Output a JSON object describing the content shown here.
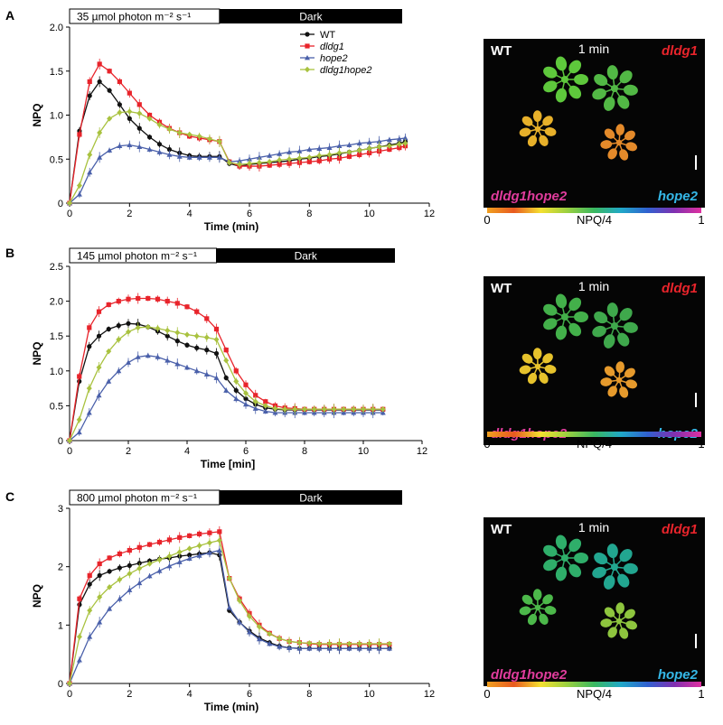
{
  "chart_data": [
    {
      "type": "line",
      "panel": "A",
      "light_label": "35 µmol photon m⁻² s⁻¹",
      "dark_label": "Dark",
      "xlabel": "Time (min)",
      "ylabel": "NPQ",
      "xlim": [
        0,
        12
      ],
      "ylim": [
        0,
        2.0
      ],
      "xticks": [
        "0",
        "2",
        "4",
        "6",
        "8",
        "10",
        "12"
      ],
      "yticks": [
        "0",
        "0.5",
        "1.0",
        "1.5",
        "2.0"
      ],
      "legend": "top-center",
      "x": [
        0,
        0.33,
        0.67,
        1.0,
        1.33,
        1.67,
        2.0,
        2.33,
        2.67,
        3.0,
        3.33,
        3.67,
        4.0,
        4.33,
        4.67,
        5.0,
        5.33,
        5.67,
        6.0,
        6.33,
        6.67,
        7.0,
        7.33,
        7.67,
        8.0,
        8.33,
        8.67,
        9.0,
        9.33,
        9.67,
        10.0,
        10.33,
        10.67,
        11.0,
        11.2
      ],
      "series": [
        {
          "name": "WT",
          "color": "#111111",
          "marker": "circle",
          "values": [
            0,
            0.82,
            1.22,
            1.38,
            1.28,
            1.12,
            0.96,
            0.85,
            0.75,
            0.67,
            0.61,
            0.57,
            0.54,
            0.53,
            0.53,
            0.53,
            0.45,
            0.42,
            0.44,
            0.45,
            0.46,
            0.47,
            0.48,
            0.5,
            0.51,
            0.53,
            0.54,
            0.56,
            0.58,
            0.6,
            0.62,
            0.64,
            0.66,
            0.68,
            0.7
          ]
        },
        {
          "name": "dldg1",
          "color": "#e8242b",
          "marker": "square",
          "values": [
            0,
            0.78,
            1.38,
            1.58,
            1.5,
            1.38,
            1.25,
            1.12,
            1.0,
            0.92,
            0.85,
            0.8,
            0.76,
            0.74,
            0.72,
            0.7,
            0.47,
            0.42,
            0.42,
            0.42,
            0.43,
            0.44,
            0.45,
            0.46,
            0.47,
            0.48,
            0.5,
            0.51,
            0.53,
            0.55,
            0.57,
            0.59,
            0.61,
            0.63,
            0.65
          ]
        },
        {
          "name": "hope2",
          "color": "#4a60aa",
          "marker": "triangle",
          "values": [
            0,
            0.1,
            0.35,
            0.52,
            0.6,
            0.65,
            0.66,
            0.64,
            0.61,
            0.58,
            0.55,
            0.53,
            0.52,
            0.52,
            0.52,
            0.52,
            0.47,
            0.48,
            0.5,
            0.52,
            0.54,
            0.56,
            0.58,
            0.59,
            0.61,
            0.62,
            0.63,
            0.65,
            0.66,
            0.68,
            0.69,
            0.7,
            0.72,
            0.73,
            0.74
          ]
        },
        {
          "name": "dldg1hope2",
          "color": "#a9c23f",
          "marker": "diamond",
          "values": [
            0,
            0.2,
            0.55,
            0.8,
            0.96,
            1.03,
            1.04,
            1.02,
            0.96,
            0.89,
            0.84,
            0.8,
            0.78,
            0.76,
            0.73,
            0.7,
            0.46,
            0.44,
            0.45,
            0.46,
            0.47,
            0.49,
            0.5,
            0.51,
            0.52,
            0.54,
            0.55,
            0.57,
            0.58,
            0.6,
            0.62,
            0.64,
            0.65,
            0.67,
            0.68
          ]
        }
      ]
    },
    {
      "type": "line",
      "panel": "B",
      "light_label": "145 µmol photon m⁻² s⁻¹",
      "dark_label": "Dark",
      "xlabel": "Time [min]",
      "ylabel": "NPQ",
      "xlim": [
        0,
        12
      ],
      "ylim": [
        0,
        2.5
      ],
      "xticks": [
        "0",
        "2",
        "4",
        "6",
        "8",
        "10",
        "12"
      ],
      "yticks": [
        "0",
        "0.5",
        "1.0",
        "1.5",
        "2.0",
        "2.5"
      ],
      "x": [
        0,
        0.33,
        0.67,
        1.0,
        1.33,
        1.67,
        2.0,
        2.33,
        2.67,
        3.0,
        3.33,
        3.67,
        4.0,
        4.33,
        4.67,
        5.0,
        5.33,
        5.67,
        6.0,
        6.33,
        6.67,
        7.0,
        7.33,
        7.67,
        8.0,
        8.33,
        8.67,
        9.0,
        9.33,
        9.67,
        10.0,
        10.33,
        10.67
      ],
      "series": [
        {
          "name": "WT",
          "color": "#111111",
          "marker": "circle",
          "values": [
            0,
            0.85,
            1.35,
            1.5,
            1.6,
            1.65,
            1.68,
            1.67,
            1.63,
            1.57,
            1.5,
            1.43,
            1.37,
            1.33,
            1.3,
            1.25,
            0.9,
            0.72,
            0.6,
            0.52,
            0.47,
            0.45,
            0.44,
            0.44,
            0.44,
            0.44,
            0.44,
            0.44,
            0.44,
            0.44,
            0.44,
            0.44,
            0.44
          ]
        },
        {
          "name": "dldg1",
          "color": "#e8242b",
          "marker": "square",
          "values": [
            0,
            0.92,
            1.62,
            1.85,
            1.95,
            2.0,
            2.03,
            2.04,
            2.04,
            2.03,
            2.0,
            1.97,
            1.92,
            1.85,
            1.75,
            1.6,
            1.3,
            1.0,
            0.8,
            0.65,
            0.56,
            0.5,
            0.47,
            0.46,
            0.45,
            0.45,
            0.45,
            0.45,
            0.45,
            0.45,
            0.45,
            0.45,
            0.45
          ]
        },
        {
          "name": "hope2",
          "color": "#4a60aa",
          "marker": "triangle",
          "values": [
            0,
            0.12,
            0.4,
            0.65,
            0.85,
            1.0,
            1.12,
            1.2,
            1.22,
            1.2,
            1.15,
            1.1,
            1.05,
            1.0,
            0.95,
            0.9,
            0.72,
            0.6,
            0.52,
            0.46,
            0.42,
            0.4,
            0.4,
            0.4,
            0.4,
            0.4,
            0.4,
            0.4,
            0.4,
            0.4,
            0.4,
            0.4,
            0.4
          ]
        },
        {
          "name": "dldg1hope2",
          "color": "#a9c23f",
          "marker": "diamond",
          "values": [
            0,
            0.3,
            0.75,
            1.05,
            1.28,
            1.45,
            1.56,
            1.62,
            1.63,
            1.61,
            1.58,
            1.55,
            1.52,
            1.5,
            1.48,
            1.45,
            1.15,
            0.85,
            0.68,
            0.56,
            0.5,
            0.46,
            0.45,
            0.45,
            0.45,
            0.45,
            0.45,
            0.45,
            0.45,
            0.45,
            0.45,
            0.45,
            0.45
          ]
        }
      ]
    },
    {
      "type": "line",
      "panel": "C",
      "light_label": "800 µmol photon m⁻² s⁻¹",
      "dark_label": "Dark",
      "xlabel": "Time (min)",
      "ylabel": "NPQ",
      "xlim": [
        0,
        12
      ],
      "ylim": [
        0,
        3
      ],
      "xticks": [
        "0",
        "2",
        "4",
        "6",
        "8",
        "10",
        "12"
      ],
      "yticks": [
        "0",
        "1",
        "2",
        "3"
      ],
      "x": [
        0,
        0.33,
        0.67,
        1.0,
        1.33,
        1.67,
        2.0,
        2.33,
        2.67,
        3.0,
        3.33,
        3.67,
        4.0,
        4.33,
        4.67,
        5.0,
        5.33,
        5.67,
        6.0,
        6.33,
        6.67,
        7.0,
        7.33,
        7.67,
        8.0,
        8.33,
        8.67,
        9.0,
        9.33,
        9.67,
        10.0,
        10.33,
        10.67
      ],
      "series": [
        {
          "name": "WT",
          "color": "#111111",
          "marker": "circle",
          "values": [
            0,
            1.35,
            1.7,
            1.85,
            1.92,
            1.98,
            2.02,
            2.06,
            2.1,
            2.13,
            2.15,
            2.18,
            2.2,
            2.22,
            2.24,
            2.2,
            1.25,
            1.05,
            0.9,
            0.78,
            0.7,
            0.64,
            0.61,
            0.6,
            0.6,
            0.6,
            0.6,
            0.6,
            0.6,
            0.6,
            0.6,
            0.6,
            0.6
          ]
        },
        {
          "name": "dldg1",
          "color": "#e8242b",
          "marker": "square",
          "values": [
            0,
            1.45,
            1.85,
            2.05,
            2.15,
            2.22,
            2.28,
            2.33,
            2.38,
            2.42,
            2.46,
            2.5,
            2.53,
            2.56,
            2.58,
            2.6,
            1.8,
            1.45,
            1.2,
            1.0,
            0.86,
            0.77,
            0.72,
            0.7,
            0.68,
            0.67,
            0.67,
            0.67,
            0.67,
            0.67,
            0.67,
            0.67,
            0.67
          ]
        },
        {
          "name": "hope2",
          "color": "#4a60aa",
          "marker": "triangle",
          "values": [
            0,
            0.4,
            0.8,
            1.05,
            1.28,
            1.45,
            1.6,
            1.72,
            1.84,
            1.93,
            2.01,
            2.08,
            2.14,
            2.19,
            2.24,
            2.28,
            1.3,
            1.05,
            0.88,
            0.76,
            0.68,
            0.63,
            0.61,
            0.6,
            0.6,
            0.6,
            0.6,
            0.6,
            0.6,
            0.6,
            0.6,
            0.6,
            0.6
          ]
        },
        {
          "name": "dldg1hope2",
          "color": "#a9c23f",
          "marker": "diamond",
          "values": [
            0,
            0.8,
            1.25,
            1.48,
            1.65,
            1.78,
            1.88,
            1.97,
            2.05,
            2.12,
            2.18,
            2.25,
            2.31,
            2.36,
            2.41,
            2.45,
            1.8,
            1.42,
            1.15,
            0.97,
            0.85,
            0.77,
            0.72,
            0.7,
            0.69,
            0.68,
            0.68,
            0.68,
            0.68,
            0.68,
            0.68,
            0.68,
            0.68
          ]
        }
      ]
    }
  ],
  "images": [
    {
      "panel": "A",
      "wt": "WT",
      "time": "1 min",
      "dldg1": "dldg1",
      "dldg1hope2": "dldg1hope2",
      "hope2": "hope2",
      "plants": [
        {
          "label": "WT",
          "color": "#5ec83c"
        },
        {
          "label": "dldg1",
          "color": "#52b845"
        },
        {
          "label": "dldg1hope2",
          "color": "#e7b02a"
        },
        {
          "label": "hope2",
          "color": "#e48a2a"
        }
      ]
    },
    {
      "panel": "B",
      "wt": "WT",
      "time": "1 min",
      "dldg1": "dldg1",
      "dldg1hope2": "dldg1hope2",
      "hope2": "hope2",
      "plants": [
        {
          "label": "WT",
          "color": "#43b04a"
        },
        {
          "label": "dldg1",
          "color": "#3fa84c"
        },
        {
          "label": "dldg1hope2",
          "color": "#e6c22c"
        },
        {
          "label": "hope2",
          "color": "#e69a2c"
        }
      ]
    },
    {
      "panel": "C",
      "wt": "WT",
      "time": "1 min",
      "dldg1": "dldg1",
      "dldg1hope2": "dldg1hope2",
      "hope2": "hope2",
      "plants": [
        {
          "label": "WT",
          "color": "#2fae6a"
        },
        {
          "label": "dldg1",
          "color": "#22a690"
        },
        {
          "label": "dldg1hope2",
          "color": "#4cb84a"
        },
        {
          "label": "hope2",
          "color": "#8ec53e"
        }
      ]
    }
  ],
  "colorbar": {
    "min": "0",
    "max": "1",
    "label": "NPQ/4",
    "stops": [
      "#f0a020",
      "#e85a20",
      "#f4e030",
      "#9ad040",
      "#3ab860",
      "#20a8c8",
      "#3060d0",
      "#8030b0",
      "#e030a0"
    ]
  },
  "label_colors": {
    "wt": "#ffffff",
    "dldg1": "#e8242b",
    "dldg1hope2": "#e03c9c",
    "hope2": "#35b8e8"
  }
}
